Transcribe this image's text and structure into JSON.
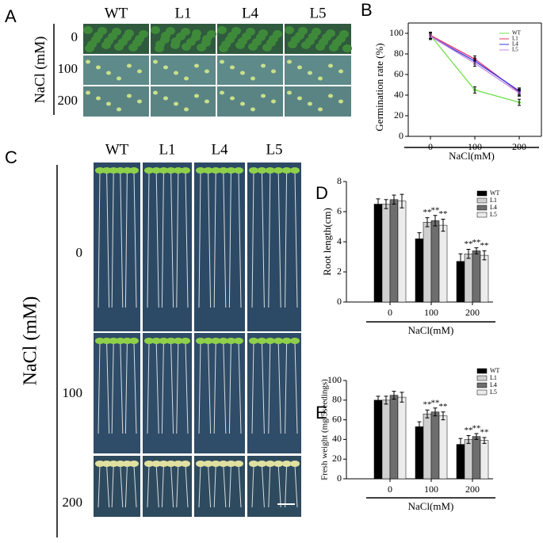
{
  "panel_a": {
    "label": "A",
    "columns": [
      "WT",
      "L1",
      "L4",
      "L5"
    ],
    "rows": [
      "0",
      "100",
      "200"
    ],
    "axis_label": "NaCl (mM)"
  },
  "panel_c": {
    "label": "C",
    "columns": [
      "WT",
      "L1",
      "L4",
      "L5"
    ],
    "rows": [
      "0",
      "100",
      "200"
    ],
    "axis_label": "NaCl (mM)"
  },
  "chart_data": [
    {
      "type": "line",
      "panel": "B",
      "ylabel": "Germination rate (%)",
      "xlabel": "NaCl(mM)",
      "categories": [
        "0",
        "100",
        "200"
      ],
      "ylim": [
        0,
        110
      ],
      "yticks": [
        0,
        20,
        40,
        60,
        80,
        100
      ],
      "series": [
        {
          "name": "WT",
          "color": "#6fe04a",
          "values": [
            98,
            45,
            33
          ],
          "errors": [
            3,
            3,
            3
          ]
        },
        {
          "name": "L1",
          "color": "#e0306a",
          "values": [
            98,
            75,
            43
          ],
          "errors": [
            3,
            3,
            3
          ]
        },
        {
          "name": "L4",
          "color": "#3535e0",
          "values": [
            97,
            73,
            44
          ],
          "errors": [
            3,
            3,
            3
          ]
        },
        {
          "name": "L5",
          "color": "#c28ae6",
          "values": [
            97,
            71,
            42
          ],
          "errors": [
            3,
            3,
            3
          ]
        }
      ]
    },
    {
      "type": "bar",
      "panel": "D",
      "ylabel": "Root length(cm)",
      "xlabel": "NaCl(mM)",
      "categories": [
        "0",
        "100",
        "200"
      ],
      "ylim": [
        0,
        8
      ],
      "yticks": [
        0,
        2,
        4,
        6,
        8
      ],
      "series": [
        {
          "name": "WT",
          "color": "#000000",
          "values": [
            6.5,
            4.2,
            2.7
          ],
          "errors": [
            0.35,
            0.4,
            0.5
          ]
        },
        {
          "name": "L1",
          "color": "#cfcfcf",
          "values": [
            6.5,
            5.3,
            3.2
          ],
          "errors": [
            0.3,
            0.3,
            0.3
          ],
          "significance": [
            null,
            "**",
            "**"
          ]
        },
        {
          "name": "L4",
          "color": "#6e6e6e",
          "values": [
            6.8,
            5.4,
            3.4
          ],
          "errors": [
            0.3,
            0.35,
            0.2
          ],
          "significance": [
            null,
            "**",
            "**"
          ]
        },
        {
          "name": "L5",
          "color": "#ececec",
          "values": [
            6.7,
            5.1,
            3.1
          ],
          "errors": [
            0.45,
            0.4,
            0.3
          ],
          "significance": [
            null,
            "**",
            "**"
          ]
        }
      ]
    },
    {
      "type": "bar",
      "panel": "E",
      "ylabel": "Fresh weight (mg/5seedings)",
      "xlabel": "NaCl(mM)",
      "categories": [
        "0",
        "100",
        "200"
      ],
      "ylim": [
        0,
        100
      ],
      "yticks": [
        0,
        20,
        40,
        60,
        80,
        100
      ],
      "series": [
        {
          "name": "WT",
          "color": "#000000",
          "values": [
            80,
            53,
            35
          ],
          "errors": [
            4,
            5,
            6
          ]
        },
        {
          "name": "L1",
          "color": "#cfcfcf",
          "values": [
            80,
            66,
            40
          ],
          "errors": [
            4,
            4,
            4
          ],
          "significance": [
            null,
            "**",
            "**"
          ]
        },
        {
          "name": "L4",
          "color": "#6e6e6e",
          "values": [
            85,
            68,
            43
          ],
          "errors": [
            4,
            4,
            3
          ],
          "significance": [
            null,
            "**",
            "**"
          ]
        },
        {
          "name": "L5",
          "color": "#ececec",
          "values": [
            83,
            64,
            39
          ],
          "errors": [
            5,
            4,
            3
          ],
          "significance": [
            null,
            "**",
            "**"
          ]
        }
      ]
    }
  ]
}
